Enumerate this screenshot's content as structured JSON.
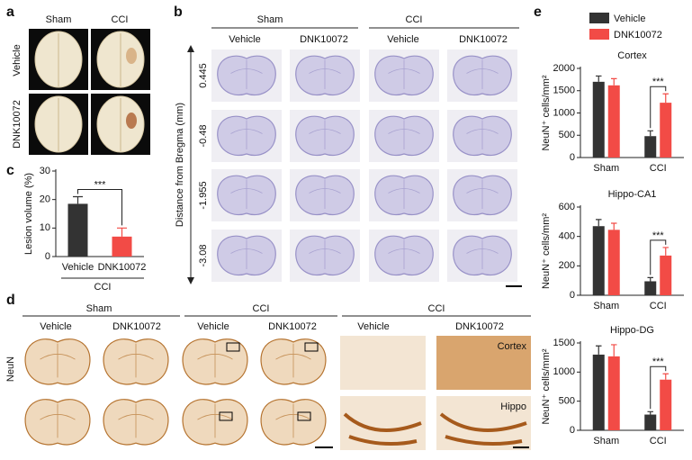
{
  "panel_labels": [
    "a",
    "b",
    "c",
    "d",
    "e"
  ],
  "panel_a": {
    "columns": [
      "Sham",
      "CCI"
    ],
    "rows": [
      "Vehicle",
      "DNK10072"
    ]
  },
  "panel_b": {
    "groups": [
      "Sham",
      "CCI"
    ],
    "columns": [
      "Vehicle",
      "DNK10072",
      "Vehicle",
      "DNK10072"
    ],
    "axis_label": "Distance from Bregma (mm)",
    "rows": [
      "0.445",
      "-0.48",
      "-1.955",
      "-3.08"
    ]
  },
  "panel_d": {
    "groups": [
      "Sham",
      "CCI",
      "CCI"
    ],
    "columns": [
      "Vehicle",
      "DNK10072",
      "Vehicle",
      "DNK10072",
      "Vehicle",
      "DNK10072"
    ],
    "row_label": "NeuN",
    "insets": [
      "Cortex",
      "Hippo"
    ]
  },
  "chart_data": [
    {
      "type": "bar",
      "y_label": "Lesion volume (%)",
      "categories": [
        "Vehicle",
        "DNK10072"
      ],
      "values": [
        18.5,
        7
      ],
      "errors": [
        2.5,
        3
      ],
      "colors": [
        "#333333",
        "#f24b46"
      ],
      "ylim": [
        0,
        30
      ],
      "yticks": [
        0,
        10,
        20,
        30
      ],
      "group_label": "CCI",
      "significance": "***"
    },
    {
      "type": "bar",
      "title": "Cortex",
      "y_label": "NeuN⁺ cells/mm²",
      "categories": [
        "Sham",
        "CCI"
      ],
      "series": [
        {
          "name": "Vehicle",
          "color": "#333333",
          "values": [
            1700,
            480
          ],
          "errors": [
            130,
            120
          ]
        },
        {
          "name": "DNK10072",
          "color": "#f24b46",
          "values": [
            1620,
            1230
          ],
          "errors": [
            150,
            200
          ]
        }
      ],
      "ylim": [
        0,
        2000
      ],
      "yticks": [
        0,
        500,
        1000,
        1500,
        2000
      ],
      "significance": "***"
    },
    {
      "type": "bar",
      "title": "Hippo-CA1",
      "y_label": "NeuN⁺ cells/mm²",
      "categories": [
        "Sham",
        "CCI"
      ],
      "series": [
        {
          "color": "#333333",
          "values": [
            470,
            95
          ],
          "errors": [
            45,
            25
          ]
        },
        {
          "color": "#f24b46",
          "values": [
            445,
            270
          ],
          "errors": [
            45,
            55
          ]
        }
      ],
      "ylim": [
        0,
        600
      ],
      "yticks": [
        0,
        200,
        400,
        600
      ],
      "significance": "***"
    },
    {
      "type": "bar",
      "title": "Hippo-DG",
      "y_label": "NeuN⁺ cells/mm²",
      "categories": [
        "Sham",
        "CCI"
      ],
      "series": [
        {
          "color": "#333333",
          "values": [
            1300,
            270
          ],
          "errors": [
            150,
            50
          ]
        },
        {
          "color": "#f24b46",
          "values": [
            1270,
            870
          ],
          "errors": [
            200,
            100
          ]
        }
      ],
      "ylim": [
        0,
        1500
      ],
      "yticks": [
        0,
        500,
        1000,
        1500
      ],
      "significance": "***"
    }
  ]
}
